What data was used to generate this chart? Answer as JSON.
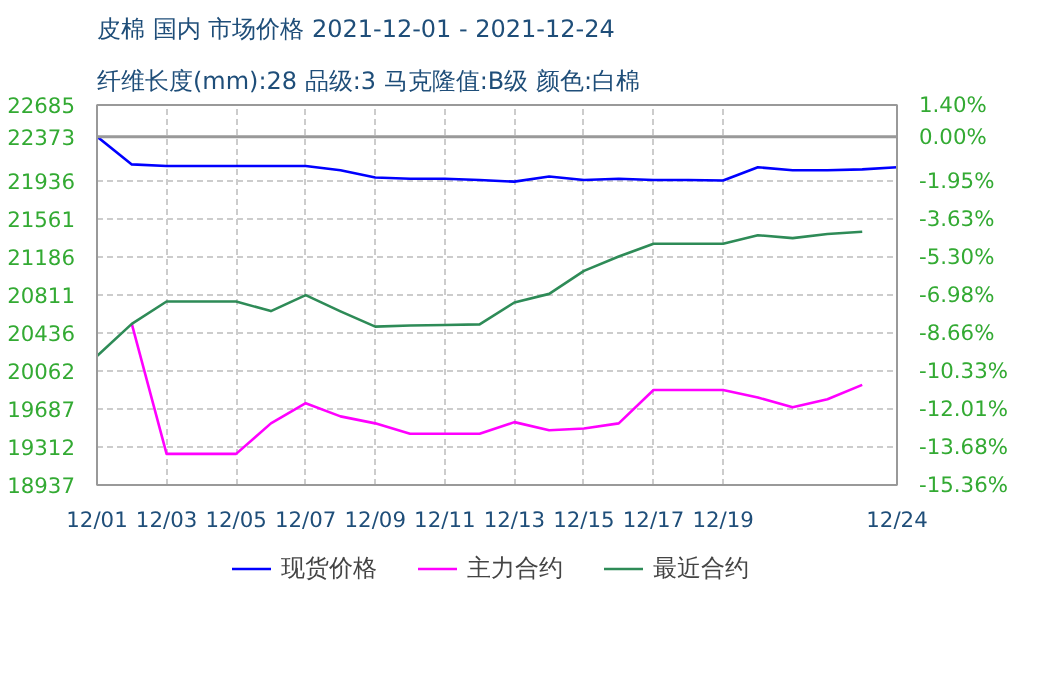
{
  "chart_data": {
    "type": "line",
    "title": "皮棉 国内 市场价格 2021-12-01 - 2021-12-24",
    "subtitle": "纤维长度(mm):28 品级:3 马克隆值:B级 颜色:白棉",
    "x": [
      "2021-12-01",
      "2021-12-02",
      "2021-12-03",
      "2021-12-04",
      "2021-12-05",
      "2021-12-06",
      "2021-12-07",
      "2021-12-08",
      "2021-12-09",
      "2021-12-10",
      "2021-12-11",
      "2021-12-12",
      "2021-12-13",
      "2021-12-14",
      "2021-12-15",
      "2021-12-16",
      "2021-12-17",
      "2021-12-18",
      "2021-12-19",
      "2021-12-20",
      "2021-12-21",
      "2021-12-22",
      "2021-12-23",
      "2021-12-24"
    ],
    "series": [
      {
        "name": "现货价格",
        "color": "#0000ff",
        "values": [
          22373,
          22099,
          22083,
          22083,
          22083,
          22083,
          22083,
          22042,
          21970,
          21957,
          21957,
          21946,
          21929,
          21980,
          21946,
          21957,
          21946,
          21946,
          21940,
          22071,
          22042,
          22042,
          22050,
          22071
        ]
      },
      {
        "name": "主力合约",
        "color": "#ff00ff",
        "values": [
          null,
          20526,
          19244,
          19244,
          19244,
          19545,
          19744,
          19614,
          19545,
          19443,
          19443,
          19443,
          19557,
          19477,
          19494,
          19545,
          19874,
          19874,
          19874,
          19800,
          19703,
          19783,
          19925,
          null
        ]
      },
      {
        "name": "最近合约",
        "color": "#2e8b57",
        "values": [
          20209,
          20526,
          20747,
          20747,
          20747,
          20652,
          20810,
          20650,
          20499,
          20510,
          20515,
          20521,
          20737,
          20822,
          21049,
          21190,
          21316,
          21316,
          21316,
          21401,
          21372,
          21412,
          21435,
          null
        ]
      }
    ],
    "xlim": [
      "2021-12-01",
      "2021-12-24"
    ],
    "xticks": [
      {
        "value": "2021-12-01",
        "label": "12/01"
      },
      {
        "value": "2021-12-03",
        "label": "12/03"
      },
      {
        "value": "2021-12-05",
        "label": "12/05"
      },
      {
        "value": "2021-12-07",
        "label": "12/07"
      },
      {
        "value": "2021-12-09",
        "label": "12/09"
      },
      {
        "value": "2021-12-11",
        "label": "12/11"
      },
      {
        "value": "2021-12-13",
        "label": "12/13"
      },
      {
        "value": "2021-12-15",
        "label": "12/15"
      },
      {
        "value": "2021-12-17",
        "label": "12/17"
      },
      {
        "value": "2021-12-19",
        "label": "12/19"
      },
      {
        "value": "2021-12-24",
        "label": "12/24"
      }
    ],
    "ylim": [
      18937,
      22685
    ],
    "yticks": [
      18937,
      19312,
      19687,
      20062,
      20436,
      20811,
      21186,
      21561,
      21936,
      22373,
      22685
    ],
    "y2lim": [
      -15.36,
      1.4
    ],
    "y2ticks": [
      {
        "value": -15.36,
        "label": "-15.36%"
      },
      {
        "value": -13.68,
        "label": "-13.68%"
      },
      {
        "value": -12.01,
        "label": "-12.01%"
      },
      {
        "value": -10.33,
        "label": "-10.33%"
      },
      {
        "value": -8.66,
        "label": "-8.66%"
      },
      {
        "value": -6.98,
        "label": "-6.98%"
      },
      {
        "value": -5.3,
        "label": "-5.30%"
      },
      {
        "value": -3.63,
        "label": "-3.63%"
      },
      {
        "value": -1.95,
        "label": "-1.95%"
      },
      {
        "value": 0,
        "label": "0.00%"
      },
      {
        "value": 1.4,
        "label": "1.40%"
      }
    ],
    "ref_lines": [
      {
        "axis": "y2",
        "value": 0,
        "label": null,
        "color": "#999999"
      }
    ],
    "grid": true,
    "legend": "bottom",
    "marker": "none",
    "line_style": "solid"
  }
}
